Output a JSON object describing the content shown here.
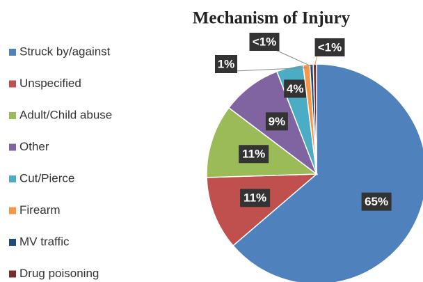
{
  "chart_data": {
    "type": "pie",
    "title": "Mechanism of Injury",
    "categories": [
      "Struck by/against",
      "Unspecified",
      "Adult/Child abuse",
      "Other",
      "Cut/Pierce",
      "Firearm",
      "MV traffic",
      "Drug poisoning"
    ],
    "values": [
      65,
      11,
      11,
      9,
      4,
      1,
      0.5,
      0.5
    ],
    "value_labels": [
      "65%",
      "11%",
      "11%",
      "9%",
      "4%",
      "1%",
      "<1%",
      "<1%"
    ],
    "colors": [
      "#4f81bd",
      "#c0504d",
      "#9bbb59",
      "#8064a2",
      "#4bacc6",
      "#f79646",
      "#1f497d",
      "#7b2c2c"
    ],
    "legend": "left"
  }
}
